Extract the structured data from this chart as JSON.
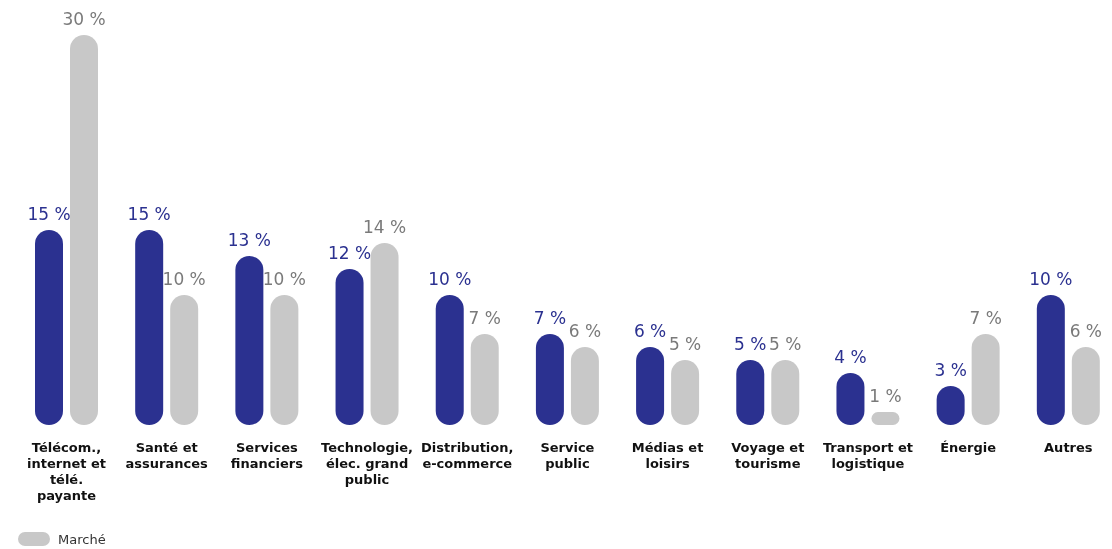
{
  "chart_data": {
    "type": "bar",
    "categories": [
      "Télécom., internet et télé. payante",
      "Santé et assurances",
      "Services financiers",
      "Technologie, élec. grand public",
      "Distribution, e-commerce",
      "Service public",
      "Médias et loisirs",
      "Voyage et tourisme",
      "Transport et logistique",
      "Énergie",
      "Autres"
    ],
    "series": [
      {
        "color": "#2b3190",
        "values": [
          15,
          15,
          13,
          12,
          10,
          7,
          6,
          5,
          4,
          3,
          10
        ],
        "value_labels": [
          "15 %",
          "15 %",
          "13 %",
          "12 %",
          "10 %",
          "7 %",
          "6 %",
          "5 %",
          "4 %",
          "3 %",
          "10 %"
        ]
      },
      {
        "name": "Marché",
        "color": "#c8c8c8",
        "values": [
          30,
          10,
          10,
          14,
          7,
          6,
          5,
          5,
          1,
          7,
          6
        ],
        "value_labels": [
          "30 %",
          "10 %",
          "10 %",
          "14 %",
          "7 %",
          "6 %",
          "5 %",
          "5 %",
          "1 %",
          "7 %",
          "6 %"
        ]
      }
    ],
    "ylim": [
      0,
      30
    ],
    "legend": "bottom left"
  }
}
